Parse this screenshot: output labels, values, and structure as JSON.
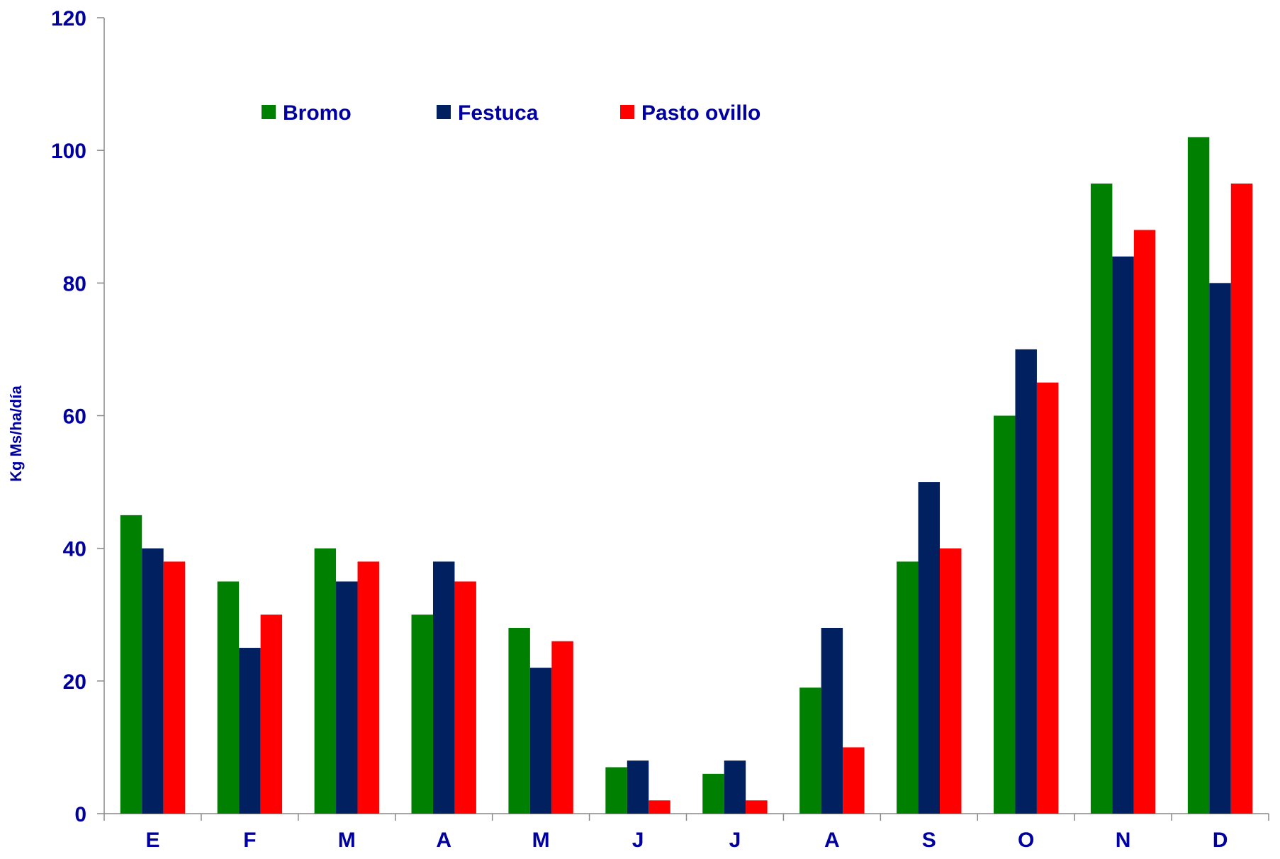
{
  "chart_data": {
    "type": "bar",
    "title": "",
    "xlabel": "",
    "ylabel": "Kg Ms/ha/día",
    "ylim": [
      0,
      120
    ],
    "yticks": [
      0,
      20,
      40,
      60,
      80,
      100,
      120
    ],
    "grid": false,
    "legend_position": "top-left",
    "categories": [
      "E",
      "F",
      "M",
      "A",
      "M",
      "J",
      "J",
      "A",
      "S",
      "O",
      "N",
      "D"
    ],
    "series": [
      {
        "name": "Bromo",
        "color": "#008000",
        "values": [
          45,
          35,
          40,
          30,
          28,
          7,
          6,
          19,
          38,
          60,
          95,
          102
        ]
      },
      {
        "name": "Festuca",
        "color": "#002060",
        "values": [
          40,
          25,
          35,
          38,
          22,
          8,
          8,
          28,
          50,
          70,
          84,
          80
        ]
      },
      {
        "name": "Pasto ovillo",
        "color": "#ff0000",
        "values": [
          38,
          30,
          38,
          35,
          26,
          2,
          2,
          10,
          40,
          65,
          88,
          95
        ]
      }
    ],
    "text_color": "#0000a0"
  }
}
